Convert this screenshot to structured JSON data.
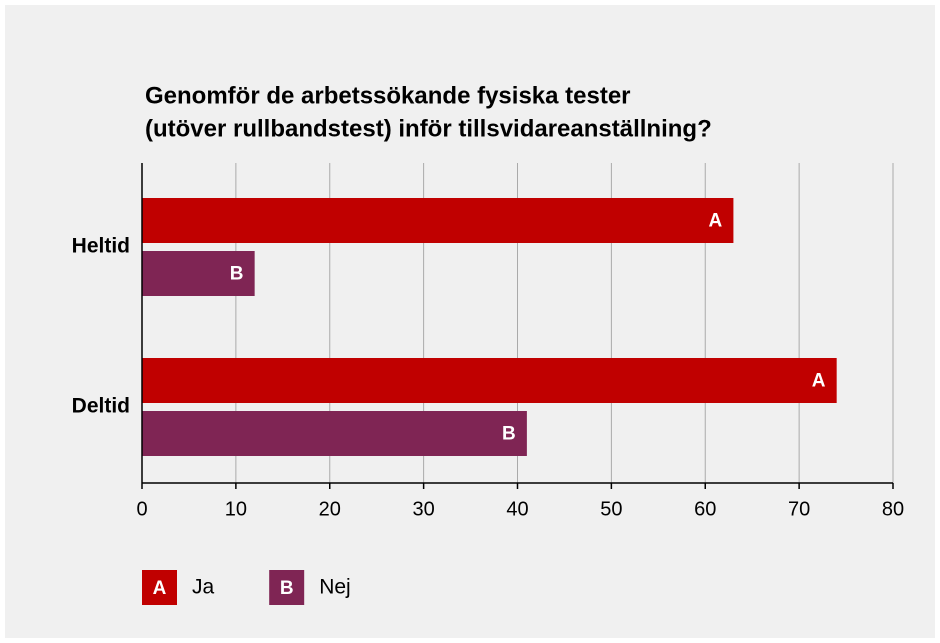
{
  "chart_data": {
    "type": "barh",
    "title": [
      "Genomför de arbetssökande fysiska tester",
      "(utöver rullbandstest) inför tillsvidareanställning?"
    ],
    "categories": [
      "Heltid",
      "Deltid"
    ],
    "series": [
      {
        "name": "Ja",
        "label": "A",
        "color": "#c00000",
        "values": [
          63,
          74
        ]
      },
      {
        "name": "Nej",
        "label": "B",
        "color": "#7f2554",
        "values": [
          12,
          41
        ]
      }
    ],
    "xlim": [
      0,
      80
    ],
    "xticks": [
      0,
      10,
      20,
      30,
      40,
      50,
      60,
      70,
      80
    ],
    "grid": true,
    "legend": "bottom-left"
  }
}
